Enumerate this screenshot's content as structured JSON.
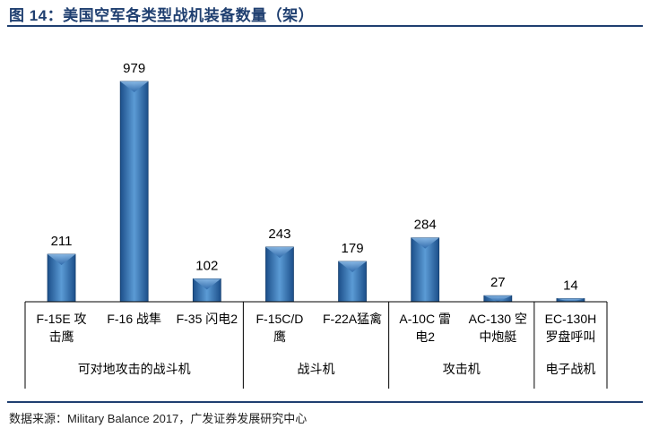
{
  "title": "图 14：美国空军各类型战机装备数量（架）",
  "source": "数据来源：Military Balance 2017，广发证券发展研究中心",
  "colors": {
    "bar_light": "#5b9bd5",
    "bar_dark": "#1c4f8a",
    "title": "#1f3f70"
  },
  "chart_data": {
    "type": "bar",
    "title": "图 14：美国空军各类型战机装备数量（架）",
    "xlabel": "",
    "ylabel": "",
    "ylim": [
      0,
      1000
    ],
    "grid": false,
    "legend": "none",
    "categories": [
      [
        "F-15E 攻",
        "击鹰"
      ],
      [
        "F-16 战隼"
      ],
      [
        "F-35 闪电2"
      ],
      [
        "F-15C/D",
        "鹰"
      ],
      [
        "F-22A猛禽"
      ],
      [
        "A-10C 雷",
        "电2"
      ],
      [
        "AC-130 空",
        "中炮艇"
      ],
      [
        "EC-130H",
        "罗盘呼叫"
      ]
    ],
    "values": [
      211,
      979,
      102,
      243,
      179,
      284,
      27,
      14
    ],
    "groups": [
      {
        "label": "可对地攻击的战斗机",
        "start": 0,
        "end": 2
      },
      {
        "label": "战斗机",
        "start": 3,
        "end": 4
      },
      {
        "label": "攻击机",
        "start": 5,
        "end": 6
      },
      {
        "label": "电子战机",
        "start": 7,
        "end": 7
      }
    ]
  }
}
